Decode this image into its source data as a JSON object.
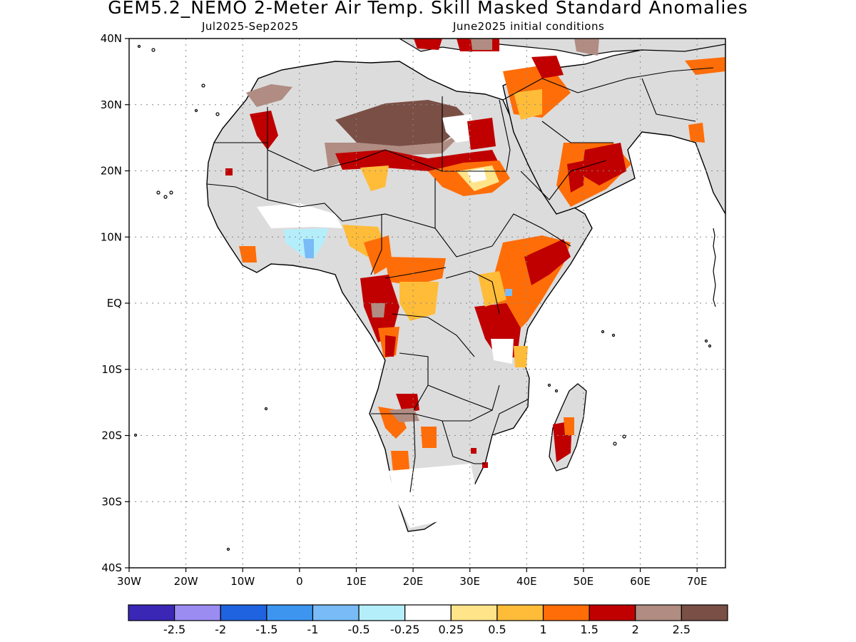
{
  "header": {
    "title": "GEM5.2_NEMO 2-Meter Air Temp. Skill Masked Standard Anomalies",
    "period": "Jul2025-Sep2025",
    "init": "June2025 initial conditions"
  },
  "map": {
    "region": "Africa",
    "lon_range": [
      -30,
      75
    ],
    "lat_range": [
      -40,
      40
    ],
    "lat_tick_labels": [
      "40N",
      "30N",
      "20N",
      "10N",
      "EQ",
      "10S",
      "20S",
      "30S",
      "40S"
    ],
    "lat_tick_values": [
      40,
      30,
      20,
      10,
      0,
      -10,
      -20,
      -30,
      -40
    ],
    "lon_tick_labels": [
      "30W",
      "20W",
      "10W",
      "0",
      "10E",
      "20E",
      "30E",
      "40E",
      "50E",
      "60E",
      "70E"
    ],
    "lon_tick_values": [
      -30,
      -20,
      -10,
      0,
      10,
      20,
      30,
      40,
      50,
      60,
      70
    ],
    "grid": "dotted",
    "land_no_skill_color": "#dcdcdc",
    "ocean_color": "#ffffff"
  },
  "colorbar": {
    "labels": [
      "-2.5",
      "-2",
      "-1.5",
      "-1",
      "-0.5",
      "-0.25",
      "0.25",
      "0.5",
      "1",
      "1.5",
      "2",
      "2.5"
    ],
    "colors": [
      "#3a27b5",
      "#9b8cf2",
      "#1f63e0",
      "#3d95f0",
      "#78bbf7",
      "#b4eefa",
      "#ffffff",
      "#ffe48a",
      "#ffbc39",
      "#ff6d08",
      "#c00000",
      "#b08c82",
      "#7a4f45"
    ]
  }
}
